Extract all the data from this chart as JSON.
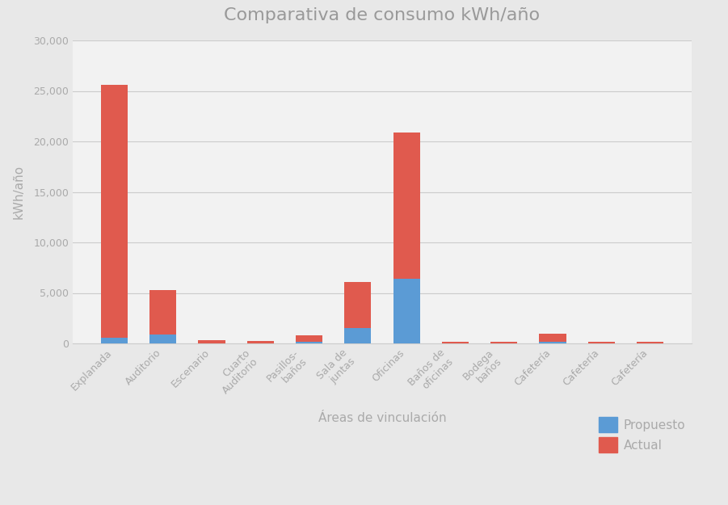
{
  "title": "Comparativa de consumo kWh/año",
  "xlabel": "Áreas de vinculación",
  "ylabel": "kWh/año",
  "categories": [
    "Explanada",
    "Auditorio",
    "Escenario",
    "Cuarto\nAuditorio",
    "Pasillos-\nbaños",
    "Sala de\njuntas",
    "Oficinas",
    "Baños de\noficinas",
    "Bodega\nbaños",
    "Cafetería",
    "Cafetería",
    "Cafetería"
  ],
  "propuesto": [
    600,
    900,
    0,
    0,
    200,
    1500,
    6400,
    0,
    0,
    200,
    0,
    0
  ],
  "actual": [
    25000,
    4400,
    300,
    250,
    600,
    4600,
    14500,
    200,
    150,
    800,
    200,
    200
  ],
  "color_propuesto": "#5b9bd5",
  "color_actual": "#e05a4e",
  "ylim": [
    0,
    30000
  ],
  "yticks": [
    0,
    5000,
    10000,
    15000,
    20000,
    25000,
    30000
  ],
  "background_color": "#e8e8e8",
  "plot_bg_color": "#f2f2f2",
  "grid_color": "#cccccc",
  "title_fontsize": 16,
  "title_color": "#999999",
  "axis_label_fontsize": 11,
  "tick_fontsize": 9,
  "tick_color": "#aaaaaa",
  "legend_fontsize": 11
}
